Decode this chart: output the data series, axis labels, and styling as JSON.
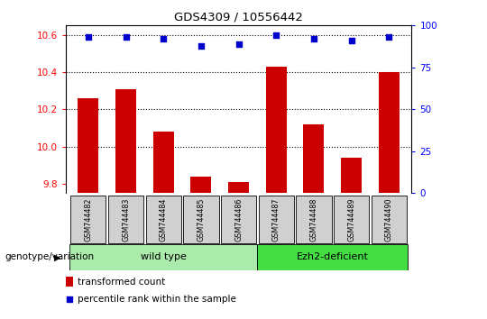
{
  "title": "GDS4309 / 10556442",
  "samples": [
    "GSM744482",
    "GSM744483",
    "GSM744484",
    "GSM744485",
    "GSM744486",
    "GSM744487",
    "GSM744488",
    "GSM744489",
    "GSM744490"
  ],
  "bar_values": [
    10.26,
    10.31,
    10.08,
    9.84,
    9.81,
    10.43,
    10.12,
    9.94,
    10.4
  ],
  "percentile_values": [
    93,
    93,
    92,
    88,
    89,
    94,
    92,
    91,
    93
  ],
  "ylim_left": [
    9.75,
    10.65
  ],
  "ylim_right": [
    0,
    100
  ],
  "yticks_left": [
    9.8,
    10.0,
    10.2,
    10.4,
    10.6
  ],
  "yticks_right": [
    0,
    25,
    50,
    75,
    100
  ],
  "bar_color": "#cc0000",
  "dot_color": "#0000cc",
  "wild_type_indices": [
    0,
    1,
    2,
    3,
    4
  ],
  "ezh2_indices": [
    5,
    6,
    7,
    8
  ],
  "wild_type_label": "wild type",
  "ezh2_label": "Ezh2-deficient",
  "genotype_label": "genotype/variation",
  "legend_bar_label": "transformed count",
  "legend_dot_label": "percentile rank within the sample",
  "wild_type_color": "#aaeaaa",
  "ezh2_color": "#44dd44",
  "group_box_color": "#d0d0d0",
  "background_color": "#ffffff",
  "fig_width": 5.4,
  "fig_height": 3.54,
  "dpi": 100
}
